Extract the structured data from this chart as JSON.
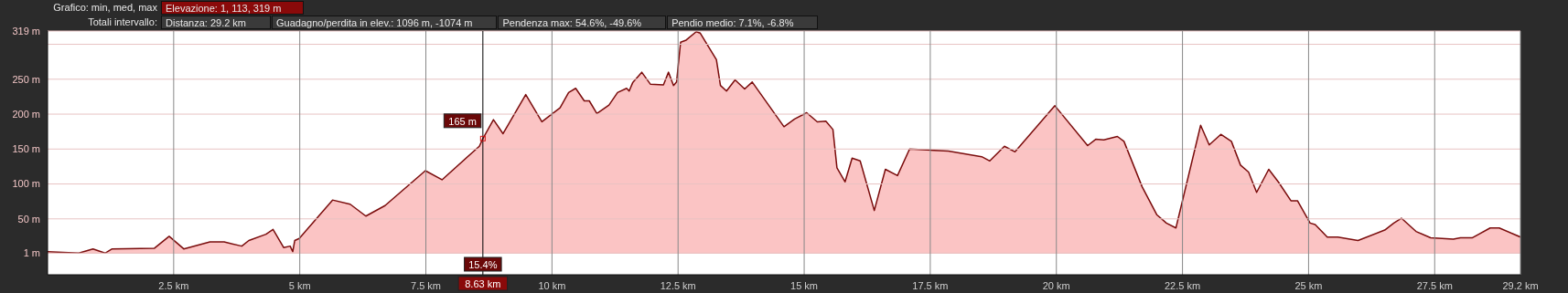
{
  "chart_data": {
    "type": "area",
    "annotations": [
      "Grafico: min, med, max",
      "Elevazione: 1, 113, 319 m",
      "Totali intervallo:",
      "Distanza: 29.2 km",
      "Guadagno/perdita in elev.: 1096 m, -1074 m",
      "Pendenza max: 54.6%, -49.6%",
      "Pendio medio: 7.1%, -6.8%",
      {
        "text": "165 m",
        "x": 8.63,
        "y": 165
      },
      {
        "text": "15.4%",
        "x": 8.63
      }
    ],
    "ref_lines": [
      {
        "axis": "x",
        "value": 8.63,
        "label": "8.63 km",
        "color": "#000000"
      }
    ],
    "x": [
      0,
      0.62,
      0.9,
      1.14,
      1.28,
      2.12,
      2.41,
      2.7,
      3.22,
      3.5,
      3.85,
      3.99,
      4.33,
      4.47,
      4.68,
      4.81,
      4.86,
      4.9,
      4.99,
      5.65,
      6.0,
      6.31,
      6.69,
      7.49,
      7.82,
      8.56,
      8.63,
      8.84,
      9.03,
      9.48,
      9.8,
      10.16,
      10.33,
      10.47,
      10.64,
      10.74,
      10.89,
      11.13,
      11.3,
      11.48,
      11.53,
      11.6,
      11.78,
      11.95,
      12.21,
      12.31,
      12.41,
      12.47,
      12.55,
      12.66,
      12.86,
      12.94,
      13.26,
      13.34,
      13.46,
      13.63,
      13.82,
      13.97,
      14.6,
      14.81,
      15.05,
      15.26,
      15.43,
      15.57,
      15.65,
      15.81,
      15.95,
      16.11,
      16.39,
      16.61,
      16.85,
      17.09,
      17.86,
      18.52,
      18.68,
      18.97,
      19.18,
      19.97,
      20.62,
      20.78,
      20.94,
      21.21,
      21.34,
      21.7,
      21.99,
      22.18,
      22.37,
      22.86,
      23.03,
      23.26,
      23.47,
      23.65,
      23.81,
      23.97,
      24.21,
      24.4,
      24.65,
      24.78,
      25.03,
      25.13,
      25.37,
      25.58,
      25.98,
      26.51,
      26.69,
      26.84,
      27.13,
      27.42,
      27.87,
      28.01,
      28.25,
      28.6,
      28.78,
      29.2
    ],
    "series": [
      {
        "color": "#fbc4c4",
        "values": [
          3,
          1,
          7,
          1,
          7,
          8,
          25,
          7,
          17,
          17,
          11,
          19,
          28,
          35,
          9,
          11,
          3,
          19,
          22,
          77,
          71,
          54,
          69,
          119,
          106,
          154,
          165,
          192,
          172,
          228,
          189,
          209,
          231,
          237,
          219,
          219,
          201,
          213,
          231,
          237,
          233,
          245,
          260,
          243,
          242,
          260,
          241,
          246,
          303,
          306,
          318,
          316,
          278,
          241,
          233,
          249,
          236,
          246,
          182,
          193,
          202,
          189,
          190,
          178,
          123,
          103,
          137,
          133,
          62,
          121,
          112,
          150,
          147,
          139,
          133,
          154,
          146,
          212,
          155,
          164,
          163,
          168,
          161,
          96,
          56,
          44,
          37,
          184,
          156,
          171,
          161,
          127,
          117,
          88,
          121,
          103,
          76,
          76,
          44,
          42,
          24,
          24,
          19,
          34,
          44,
          51,
          32,
          23,
          21,
          23,
          23,
          37,
          37,
          24
        ]
      }
    ],
    "xlim": [
      0,
      29.2
    ],
    "xticks": [
      {
        "value": 2.5,
        "label": "2.5 km"
      },
      {
        "value": 5,
        "label": "5 km"
      },
      {
        "value": 7.5,
        "label": "7.5 km"
      },
      {
        "value": 10,
        "label": "10 km"
      },
      {
        "value": 12.5,
        "label": "12.5 km"
      },
      {
        "value": 15,
        "label": "15 km"
      },
      {
        "value": 17.5,
        "label": "17.5 km"
      },
      {
        "value": 20,
        "label": "20 km"
      },
      {
        "value": 22.5,
        "label": "22.5 km"
      },
      {
        "value": 25,
        "label": "25 km"
      },
      {
        "value": 27.5,
        "label": "27.5 km"
      },
      {
        "value": 29.2,
        "label": "29.2 km"
      }
    ],
    "ylim": [
      -30,
      319
    ],
    "yticks": [
      {
        "value": 1,
        "label": "1 m"
      },
      {
        "value": 50,
        "label": "50 m"
      },
      {
        "value": 100,
        "label": "100 m"
      },
      {
        "value": 150,
        "label": "150 m"
      },
      {
        "value": 200,
        "label": "200 m"
      },
      {
        "value": 250,
        "label": "250 m"
      },
      {
        "value": 300,
        "label": null
      },
      {
        "value": 319,
        "label": "319 m"
      }
    ],
    "grid": true
  }
}
